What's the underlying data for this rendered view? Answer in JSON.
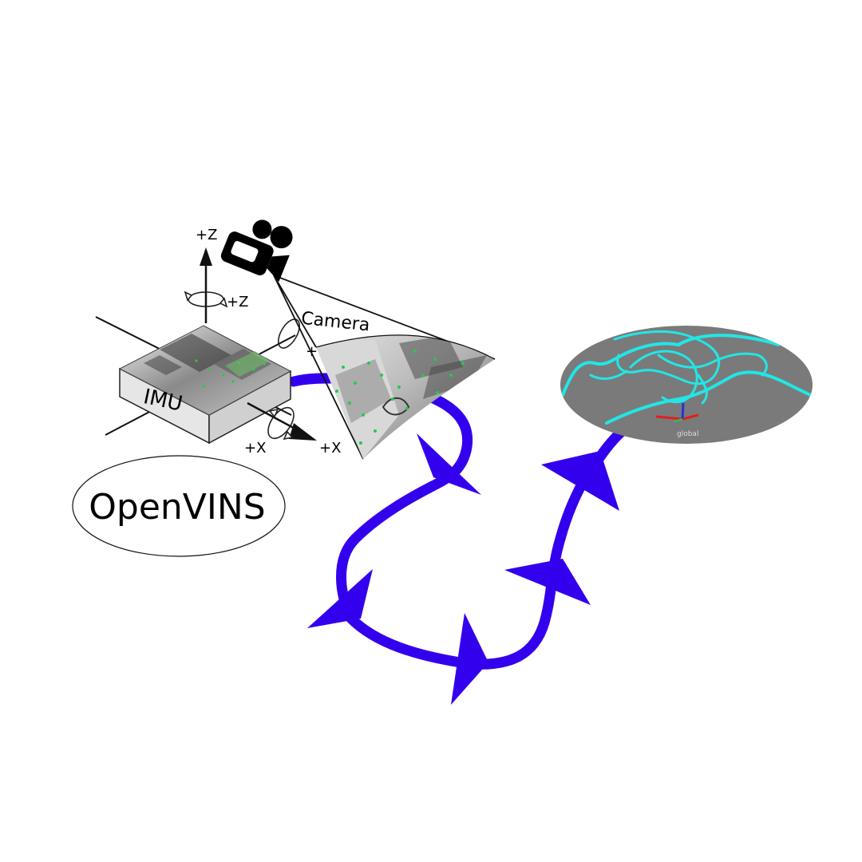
{
  "labels": {
    "z_axis": "+Z",
    "z_rotation": "+Z",
    "x_axis": "+X",
    "x_rotation": "+X",
    "y_axis_partial": "+",
    "imu": "IMU",
    "camera": "Camera",
    "logo": "OpenVINS",
    "frame_tag": "global"
  },
  "colors": {
    "trajectory": "#3300ee",
    "map_path": "#22e6e6",
    "map_disc": "#7a7a7a",
    "axis_red": "#e02020",
    "axis_blue": "#2233dd",
    "feature_green": "#22cc44"
  },
  "icons": {
    "camera": "video-camera-icon",
    "rotation": "rotation-arrow-icon"
  }
}
